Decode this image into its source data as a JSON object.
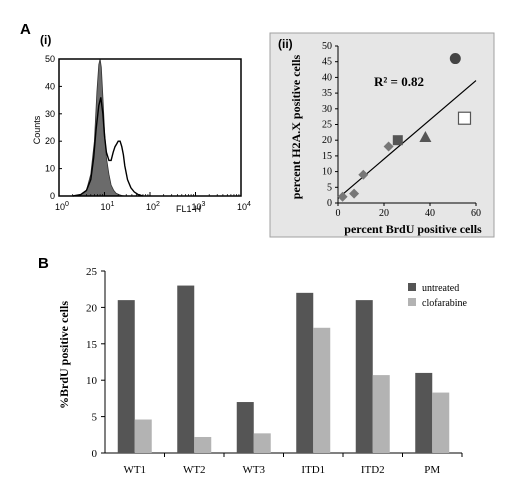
{
  "figure": {
    "label_a": "A",
    "label_b": "B"
  },
  "chart_data": [
    {
      "id": "histogram",
      "type": "area",
      "panel_label": "(i)",
      "xlabel": "FL1-H",
      "ylabel": "Counts",
      "x_scale": "log",
      "xlim": [
        1,
        10000
      ],
      "ylim": [
        0,
        50
      ],
      "x_ticks": [
        {
          "label": "10",
          "exp": "0",
          "value": 1
        },
        {
          "label": "10",
          "exp": "1",
          "value": 10
        },
        {
          "label": "10",
          "exp": "2",
          "value": 100
        },
        {
          "label": "10",
          "exp": "3",
          "value": 1000
        },
        {
          "label": "10",
          "exp": "4",
          "value": 10000
        }
      ],
      "y_ticks": [
        0,
        10,
        20,
        30,
        40,
        50
      ],
      "series": [
        {
          "style": "filled",
          "fill": "#6b6b6b",
          "x": [
            2,
            3,
            4,
            5,
            6,
            6.8,
            7.5,
            8,
            8.5,
            9.2,
            10,
            11,
            12.5,
            14,
            16,
            18,
            21,
            24,
            28
          ],
          "y": [
            0,
            0.5,
            2,
            8,
            20,
            38,
            48,
            50,
            47,
            36,
            24,
            14,
            8,
            4,
            2,
            1,
            0.5,
            0.2,
            0
          ]
        },
        {
          "style": "outline",
          "x": [
            2,
            3,
            4,
            5,
            5.8,
            6.5,
            7.5,
            8.3,
            9.2,
            10,
            11,
            12.5,
            14,
            15.5,
            17,
            18.5,
            20,
            22,
            24,
            26,
            28,
            32,
            38,
            45,
            55,
            70
          ],
          "y": [
            0,
            0.5,
            2,
            6,
            14,
            24,
            33,
            36,
            30,
            22,
            16,
            13,
            13,
            16,
            18,
            19,
            20,
            20,
            18,
            15,
            11,
            6,
            3,
            1.5,
            0.5,
            0
          ]
        }
      ]
    },
    {
      "id": "scatter",
      "type": "scatter",
      "panel_label": "(ii)",
      "xlabel": "percent BrdU positive cells",
      "ylabel": "percent H2A.X positive cells",
      "xlim": [
        0,
        60
      ],
      "ylim": [
        0,
        50
      ],
      "x_ticks": [
        0,
        20,
        40,
        60
      ],
      "y_ticks": [
        0,
        5,
        10,
        15,
        20,
        25,
        30,
        35,
        40,
        45,
        50
      ],
      "annotation": "R² = 0.82",
      "trendline": {
        "x": [
          0,
          60
        ],
        "y": [
          1.5,
          39
        ]
      },
      "points": [
        {
          "x": 2,
          "y": 2,
          "marker": "diamond",
          "color": "#777777"
        },
        {
          "x": 7,
          "y": 3,
          "marker": "diamond",
          "color": "#777777"
        },
        {
          "x": 11,
          "y": 9,
          "marker": "diamond",
          "color": "#777777"
        },
        {
          "x": 22,
          "y": 18,
          "marker": "diamond",
          "color": "#777777"
        },
        {
          "x": 26,
          "y": 20,
          "marker": "square",
          "color": "#555555"
        },
        {
          "x": 38,
          "y": 21,
          "marker": "triangle",
          "color": "#555555"
        },
        {
          "x": 51,
          "y": 46,
          "marker": "circle",
          "color": "#444444"
        },
        {
          "x": 55,
          "y": 27,
          "marker": "open-square",
          "color": "#555555"
        }
      ]
    },
    {
      "id": "bars",
      "type": "bar",
      "ylabel": "%BrdU positive cells",
      "ylim": [
        0,
        25
      ],
      "y_ticks": [
        0,
        5,
        10,
        15,
        20,
        25
      ],
      "categories": [
        "WT1",
        "WT2",
        "WT3",
        "ITD1",
        "ITD2",
        "PM"
      ],
      "legend_position": "top-right",
      "series": [
        {
          "name": "untreated",
          "color": "#555555",
          "values": [
            21,
            23,
            7,
            22,
            21,
            11
          ]
        },
        {
          "name": "clofarabine",
          "color": "#b3b3b3",
          "values": [
            4.6,
            2.2,
            2.7,
            17.2,
            10.7,
            8.3
          ]
        }
      ]
    }
  ]
}
